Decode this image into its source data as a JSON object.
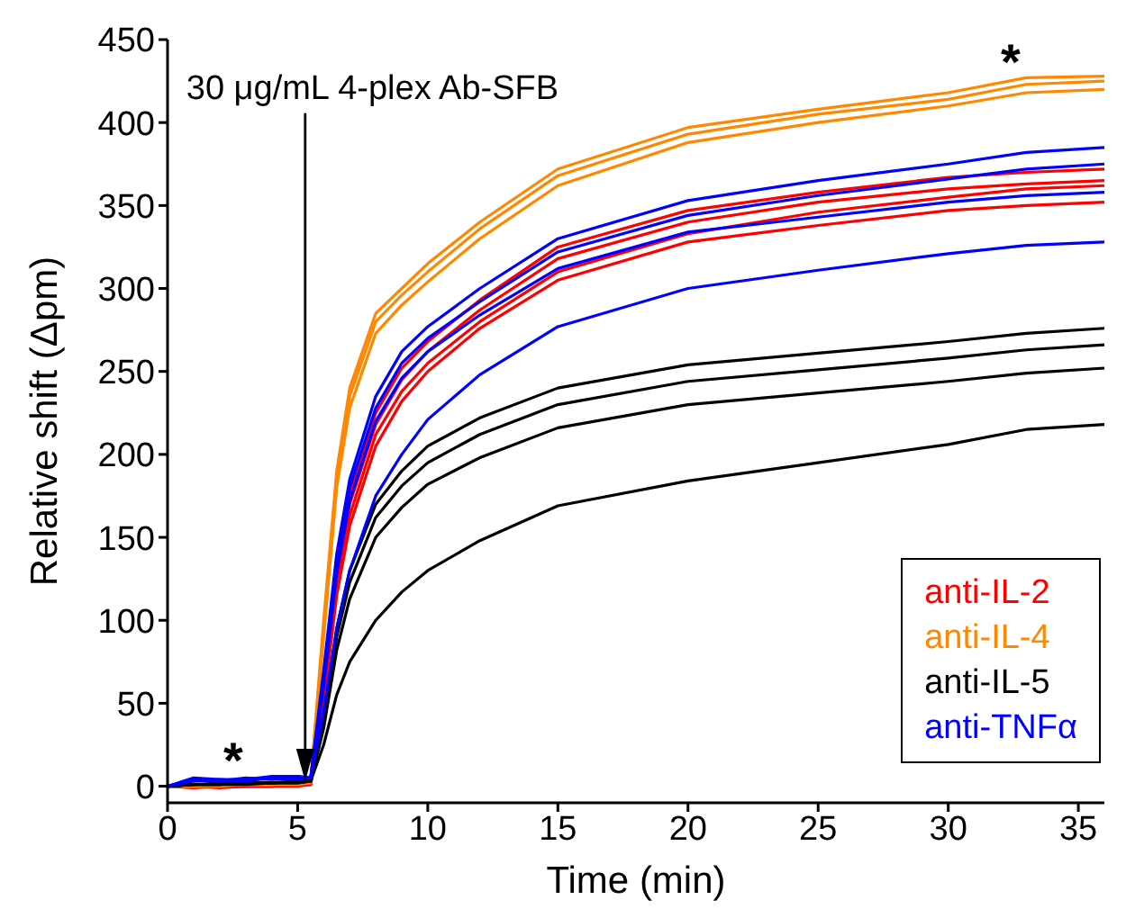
{
  "chart_data": {
    "type": "line",
    "xlabel": "Time (min)",
    "ylabel": "Relative shift (Δpm)",
    "xlim": [
      0,
      36
    ],
    "xticks": [
      0,
      5,
      10,
      15,
      20,
      25,
      30,
      35
    ],
    "ylim": [
      -10,
      450
    ],
    "yticks": [
      0,
      50,
      100,
      150,
      200,
      250,
      300,
      350,
      400,
      450
    ],
    "legend": "bottom right",
    "x": [
      0,
      1,
      2,
      3,
      4,
      5,
      5.5,
      6,
      6.5,
      7,
      8,
      9,
      10,
      12,
      15,
      20,
      25,
      30,
      33,
      36
    ],
    "series": [
      {
        "name": "anti-IL-2",
        "color": "#ff0000",
        "values": [
          0,
          0,
          0,
          0,
          0,
          1,
          2,
          60,
          130,
          175,
          225,
          252,
          268,
          293,
          325,
          347,
          358,
          367,
          370,
          372
        ]
      },
      {
        "color": "#ff0000",
        "values": [
          0,
          0,
          -1,
          0,
          0,
          1,
          1,
          55,
          125,
          170,
          218,
          245,
          262,
          287,
          318,
          340,
          352,
          360,
          363,
          365
        ]
      },
      {
        "color": "#ff0000",
        "values": [
          0,
          -1,
          0,
          0,
          0,
          0,
          1,
          52,
          120,
          163,
          212,
          238,
          255,
          280,
          310,
          333,
          346,
          355,
          360,
          362
        ]
      },
      {
        "color": "#ff0000",
        "values": [
          0,
          0,
          0,
          0,
          0,
          1,
          1,
          50,
          115,
          157,
          205,
          232,
          250,
          276,
          305,
          328,
          338,
          347,
          350,
          352
        ]
      },
      {
        "name": "anti-IL-4",
        "color": "#ff8800",
        "values": [
          0,
          1,
          1,
          1,
          1,
          2,
          3,
          100,
          190,
          240,
          285,
          300,
          315,
          340,
          372,
          397,
          408,
          418,
          427,
          428
        ]
      },
      {
        "color": "#ff8800",
        "values": [
          0,
          0,
          1,
          1,
          1,
          2,
          3,
          95,
          185,
          235,
          280,
          296,
          310,
          336,
          368,
          393,
          405,
          414,
          423,
          425
        ]
      },
      {
        "color": "#ff8800",
        "values": [
          0,
          0,
          0,
          1,
          1,
          1,
          2,
          90,
          180,
          228,
          273,
          290,
          304,
          330,
          362,
          388,
          400,
          410,
          418,
          420
        ]
      },
      {
        "name": "anti-IL-5",
        "color": "#000000",
        "values": [
          0,
          1,
          2,
          2,
          2,
          3,
          4,
          40,
          95,
          130,
          170,
          190,
          205,
          222,
          240,
          254,
          261,
          268,
          273,
          276
        ]
      },
      {
        "color": "#000000",
        "values": [
          0,
          1,
          1,
          2,
          2,
          3,
          3,
          38,
          90,
          123,
          162,
          181,
          195,
          212,
          230,
          244,
          251,
          258,
          263,
          266
        ]
      },
      {
        "color": "#000000",
        "values": [
          0,
          1,
          1,
          2,
          2,
          2,
          3,
          35,
          82,
          113,
          150,
          168,
          182,
          198,
          216,
          230,
          237,
          244,
          249,
          252
        ]
      },
      {
        "color": "#000000",
        "values": [
          0,
          1,
          1,
          1,
          2,
          2,
          3,
          25,
          55,
          75,
          100,
          117,
          130,
          148,
          169,
          184,
          195,
          206,
          215,
          218
        ]
      },
      {
        "name": "anti-TNFα",
        "color": "#0000ff",
        "values": [
          0,
          5,
          4,
          4,
          6,
          6,
          5,
          70,
          140,
          185,
          235,
          262,
          277,
          300,
          330,
          353,
          365,
          375,
          382,
          385
        ]
      },
      {
        "color": "#0000ff",
        "values": [
          0,
          4,
          3,
          5,
          4,
          5,
          5,
          65,
          135,
          180,
          228,
          255,
          270,
          292,
          322,
          344,
          356,
          366,
          372,
          375
        ]
      },
      {
        "color": "#0000ff",
        "values": [
          0,
          3,
          4,
          3,
          5,
          4,
          5,
          60,
          128,
          172,
          220,
          246,
          262,
          284,
          312,
          334,
          343,
          352,
          356,
          358
        ]
      },
      {
        "color": "#0000ff",
        "values": [
          0,
          4,
          3,
          4,
          5,
          6,
          5,
          45,
          95,
          130,
          175,
          200,
          221,
          248,
          277,
          300,
          311,
          321,
          326,
          328
        ]
      }
    ],
    "annotations": [
      "30 μg/mL 4-plex Ab-SFB",
      "*",
      "*"
    ]
  }
}
